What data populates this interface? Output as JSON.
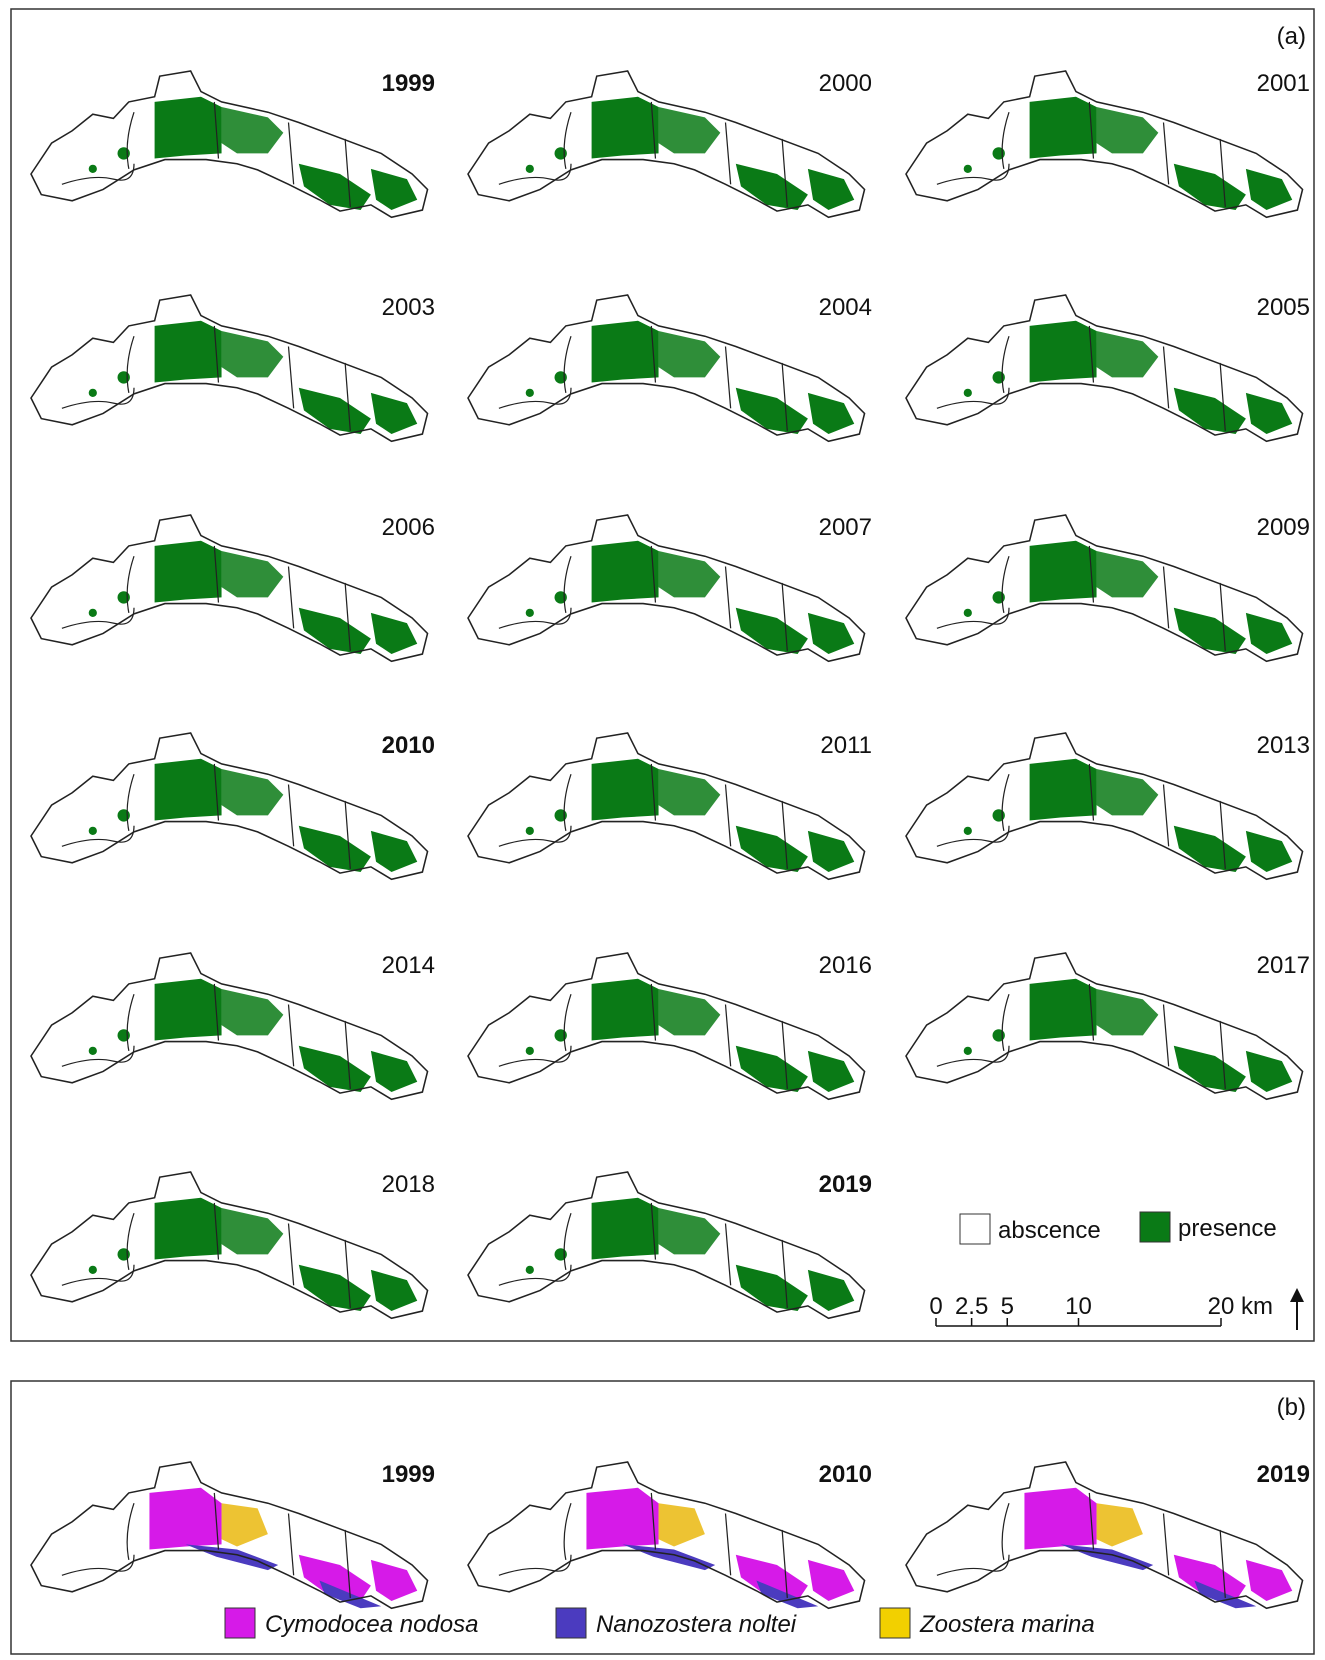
{
  "panel_a": {
    "label": "(a)",
    "maps": [
      {
        "year": "1999",
        "bold": true
      },
      {
        "year": "2000",
        "bold": false
      },
      {
        "year": "2001",
        "bold": false
      },
      {
        "year": "2003",
        "bold": false
      },
      {
        "year": "2004",
        "bold": false
      },
      {
        "year": "2005",
        "bold": false
      },
      {
        "year": "2006",
        "bold": false
      },
      {
        "year": "2007",
        "bold": false
      },
      {
        "year": "2009",
        "bold": false
      },
      {
        "year": "2010",
        "bold": true
      },
      {
        "year": "2011",
        "bold": false
      },
      {
        "year": "2013",
        "bold": false
      },
      {
        "year": "2014",
        "bold": false
      },
      {
        "year": "2016",
        "bold": false
      },
      {
        "year": "2017",
        "bold": false
      },
      {
        "year": "2018",
        "bold": false
      },
      {
        "year": "2019",
        "bold": true
      }
    ],
    "legend": [
      "abscence",
      "presence"
    ],
    "scale_bar": {
      "ticks": [
        0,
        2.5,
        5,
        10,
        20
      ],
      "unit": "km"
    }
  },
  "panel_b": {
    "label": "(b)",
    "maps": [
      {
        "year": "1999",
        "bold": true
      },
      {
        "year": "2010",
        "bold": true
      },
      {
        "year": "2019",
        "bold": true
      }
    ],
    "legend": [
      "Cymodocea nodosa",
      "Nanozostera noltei",
      "Zoostera marina"
    ]
  }
}
